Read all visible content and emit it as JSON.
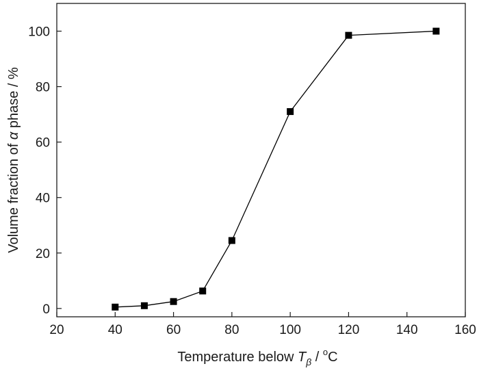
{
  "chart_data": {
    "type": "line",
    "title": "",
    "xlabel": {
      "prefix": "Temperature below ",
      "symbol": "T",
      "subscript": "β",
      "unit_sep": " / ",
      "unit_sup": "o",
      "unit": "C"
    },
    "ylabel": {
      "prefix": "Volume fraction of ",
      "symbol": "α",
      "suffix": " phase / %"
    },
    "xlim": [
      20,
      160
    ],
    "ylim": [
      -3,
      110
    ],
    "xticks": [
      20,
      40,
      60,
      80,
      100,
      120,
      140,
      160
    ],
    "yticks": [
      0,
      20,
      40,
      60,
      80,
      100
    ],
    "grid": false,
    "legend": "none",
    "series": [
      {
        "marker": "filled-square",
        "color": "#000000",
        "x": [
          40,
          50,
          60,
          70,
          80,
          100,
          120,
          150
        ],
        "y": [
          0.5,
          1,
          2.5,
          6.3,
          24.5,
          71,
          98.5,
          100
        ]
      }
    ]
  }
}
